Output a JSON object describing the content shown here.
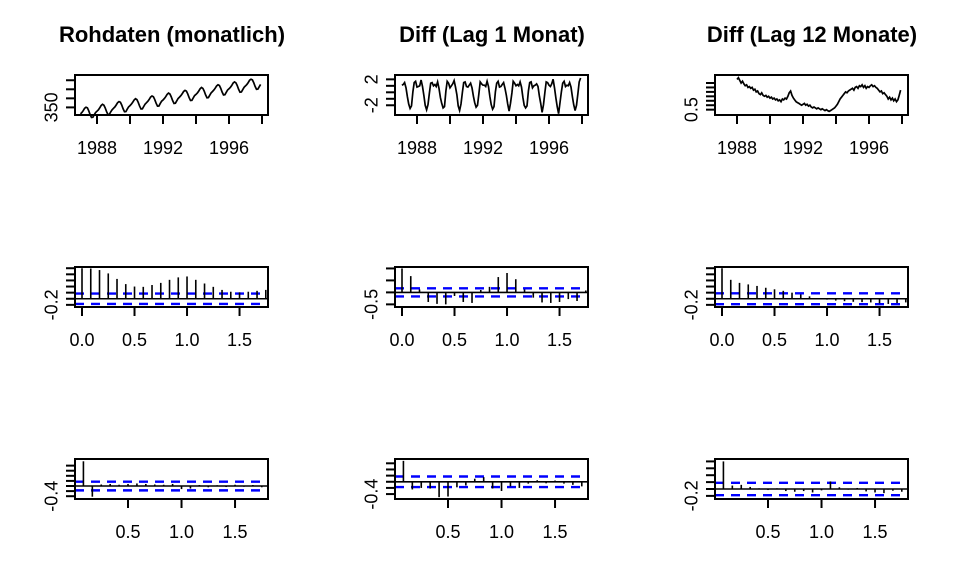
{
  "titles": {
    "col1": "Rohdaten (monatlich)",
    "col2": "Diff (Lag 1 Monat)",
    "col3": "Diff (Lag 12 Monate)"
  },
  "colors": {
    "series": "#000000",
    "axis": "#000000",
    "ci_band": "#0000FF",
    "background": "#FFFFFF"
  },
  "chart_data": [
    {
      "panel_id": "p1",
      "name": "raw-monthly-series",
      "type": "line",
      "title": "Rohdaten (monatlich)",
      "xlabel": "",
      "ylabel": "",
      "x_start": 1987.0,
      "x_step": 0.0833333,
      "xlim": [
        1986.667,
        1998.364
      ],
      "ylim": [
        345.8,
        367.9
      ],
      "xticks": {
        "values": [
          1988,
          1990,
          1992,
          1994,
          1996,
          1998
        ],
        "labels": [
          "1988",
          "",
          "1992",
          "",
          "1996",
          ""
        ]
      },
      "yticks": {
        "values": [
          350,
          355,
          360,
          365
        ],
        "labels": [
          "350",
          "",
          "",
          ""
        ]
      },
      "values": [
        346.4,
        347.2,
        348.2,
        349.5,
        350.1,
        349.7,
        348.2,
        346.1,
        344.5,
        344.6,
        345.9,
        347.2,
        347.9,
        348.7,
        349.7,
        351.0,
        351.7,
        351.2,
        349.7,
        347.6,
        346.0,
        346.2,
        347.5,
        348.7,
        349.5,
        350.3,
        351.3,
        352.6,
        353.2,
        352.8,
        351.3,
        349.2,
        347.6,
        347.7,
        349.0,
        350.3,
        351.0,
        351.8,
        352.8,
        354.1,
        354.8,
        354.3,
        352.8,
        350.7,
        349.1,
        349.2,
        350.5,
        351.8,
        352.6,
        353.4,
        354.4,
        355.7,
        356.3,
        355.9,
        354.4,
        352.3,
        350.7,
        350.8,
        352.1,
        353.4,
        354.1,
        354.9,
        355.9,
        357.2,
        357.9,
        357.4,
        355.9,
        353.8,
        352.2,
        352.3,
        353.6,
        354.9,
        355.7,
        356.5,
        357.5,
        358.8,
        359.4,
        359.0,
        357.5,
        355.4,
        353.8,
        353.9,
        355.2,
        356.5,
        357.2,
        358.0,
        359.0,
        360.3,
        361.0,
        360.5,
        359.0,
        356.9,
        355.3,
        355.4,
        356.7,
        358.0,
        358.8,
        359.6,
        360.6,
        361.9,
        362.5,
        362.1,
        360.6,
        358.5,
        356.9,
        357.0,
        358.3,
        359.6,
        360.3,
        361.1,
        362.1,
        363.4,
        364.1,
        363.6,
        362.1,
        360.0,
        358.4,
        358.5,
        359.8,
        361.1,
        361.9,
        362.7,
        363.7,
        365.0,
        365.6,
        365.2,
        363.7,
        361.6,
        360.0,
        360.1,
        361.4,
        362.7
      ]
    },
    {
      "panel_id": "p2",
      "name": "diff-lag1-series",
      "type": "line",
      "title": "Diff (Lag 1 Monat)",
      "xlabel": "",
      "ylabel": "",
      "x_start": 1987.0833,
      "x_step": 0.0833333,
      "xlim": [
        1986.667,
        1998.364
      ],
      "ylim": [
        -3.5,
        2.67
      ],
      "xticks": {
        "values": [
          1988,
          1990,
          1992,
          1994,
          1996,
          1998
        ],
        "labels": [
          "1988",
          "",
          "1992",
          "",
          "1996",
          ""
        ]
      },
      "yticks": {
        "values": [
          -2,
          -1,
          0,
          1,
          2
        ],
        "labels": [
          "-2",
          "",
          "",
          "",
          "2"
        ]
      },
      "values": [
        1.1,
        1.2,
        1.5,
        0.7,
        -0.7,
        -1.8,
        -2.5,
        -2.1,
        0.1,
        1.5,
        1.7,
        0.8,
        0.9,
        1.0,
        1.9,
        0.9,
        -0.5,
        -2.0,
        -2.7,
        -1.9,
        -0.1,
        1.4,
        1.5,
        1.0,
        1.2,
        0.9,
        1.6,
        0.6,
        -0.8,
        -1.7,
        -2.4,
        -2.2,
        0.2,
        1.7,
        1.4,
        0.7,
        1.0,
        1.3,
        1.8,
        0.8,
        -0.4,
        -2.1,
        -2.8,
        -1.8,
        0.0,
        1.5,
        1.6,
        0.9,
        0.8,
        1.1,
        1.4,
        0.7,
        -0.6,
        -1.6,
        -2.3,
        -2.0,
        -0.2,
        1.6,
        1.3,
        1.1,
        1.1,
        0.9,
        1.7,
        0.9,
        -0.7,
        -1.9,
        -2.6,
        -2.2,
        0.1,
        1.4,
        1.7,
        0.8,
        0.9,
        1.2,
        1.5,
        0.6,
        -0.5,
        -1.8,
        -2.9,
        -1.7,
        -0.1,
        1.7,
        1.4,
        1.0,
        1.2,
        1.0,
        1.6,
        0.8,
        -0.8,
        -2.0,
        -2.4,
        -2.1,
        0.2,
        1.5,
        1.6,
        0.7,
        1.0,
        1.1,
        1.3,
        0.9,
        -0.6,
        -1.7,
        -3.1,
        -1.9,
        0.0,
        1.6,
        1.5,
        1.1,
        0.9,
        1.3,
        2.0,
        0.7,
        -0.9,
        -2.2,
        -3.3,
        -1.6,
        0.1,
        1.4,
        1.7,
        0.9,
        1.1,
        1.0,
        1.5,
        0.8,
        -0.7,
        -1.9,
        -2.8,
        -2.0,
        -0.2,
        1.6,
        2.2
      ]
    },
    {
      "panel_id": "p3",
      "name": "diff-lag12-series",
      "type": "line",
      "title": "Diff (Lag 12 Monate)",
      "xlabel": "",
      "ylabel": "",
      "x_start": 1988.0,
      "x_step": 0.0833333,
      "xlim": [
        1986.667,
        1998.364
      ],
      "ylim": [
        0.2,
        2.45
      ],
      "xticks": {
        "values": [
          1988,
          1990,
          1992,
          1994,
          1996,
          1998
        ],
        "labels": [
          "1988",
          "",
          "1992",
          "",
          "1996",
          ""
        ]
      },
      "yticks": {
        "values": [
          0.5,
          0.75,
          1.0,
          1.25,
          1.5,
          1.75,
          2.0
        ],
        "labels": [
          "0.5",
          "",
          "",
          "",
          "",
          "",
          ""
        ]
      },
      "values": [
        2.2,
        2.3,
        2.15,
        2.0,
        2.1,
        1.95,
        1.85,
        1.9,
        1.75,
        1.8,
        1.7,
        1.75,
        1.6,
        1.65,
        1.5,
        1.55,
        1.4,
        1.35,
        1.45,
        1.3,
        1.25,
        1.3,
        1.2,
        1.25,
        1.15,
        1.2,
        1.1,
        1.15,
        1.05,
        1.1,
        1.0,
        1.05,
        0.95,
        1.1,
        1.05,
        1.15,
        1.1,
        1.25,
        1.45,
        1.55,
        1.3,
        1.15,
        1.05,
        0.95,
        0.9,
        0.85,
        0.8,
        0.75,
        0.8,
        0.85,
        0.75,
        0.8,
        0.7,
        0.75,
        0.65,
        0.6,
        0.65,
        0.6,
        0.55,
        0.6,
        0.55,
        0.5,
        0.55,
        0.5,
        0.45,
        0.5,
        0.45,
        0.4,
        0.45,
        0.5,
        0.55,
        0.6,
        0.7,
        0.8,
        0.95,
        1.1,
        1.2,
        1.3,
        1.4,
        1.5,
        1.45,
        1.55,
        1.6,
        1.65,
        1.7,
        1.6,
        1.75,
        1.8,
        1.7,
        1.85,
        1.8,
        1.9,
        1.75,
        1.85,
        1.7,
        1.8,
        1.75,
        1.85,
        1.9,
        1.8,
        1.85,
        1.75,
        1.7,
        1.6,
        1.5,
        1.55,
        1.4,
        1.45,
        1.35,
        1.25,
        1.1,
        1.2,
        1.05,
        1.15,
        1.0,
        1.1,
        0.95,
        1.05,
        1.3,
        1.6
      ]
    },
    {
      "panel_id": "p4",
      "name": "acf-raw",
      "type": "acf",
      "title": "",
      "xlabel": "",
      "ylabel": "",
      "start_lag": 0,
      "ci": 0.171,
      "xlim": [
        -0.0667,
        1.771
      ],
      "ylim": [
        -0.27,
        1.04
      ],
      "xticks": {
        "values": [
          0.0,
          0.5,
          1.0,
          1.5
        ],
        "labels": [
          "0.0",
          "0.5",
          "1.0",
          "1.5"
        ]
      },
      "yticks": {
        "values": [
          -0.2,
          0.0,
          0.2,
          0.4,
          0.6,
          0.8,
          1.0
        ],
        "labels": [
          "-0.2",
          "",
          "",
          "",
          "",
          "",
          ""
        ]
      },
      "values": [
        1.0,
        0.99,
        0.94,
        0.83,
        0.65,
        0.48,
        0.4,
        0.39,
        0.45,
        0.52,
        0.62,
        0.7,
        0.73,
        0.62,
        0.5,
        0.39,
        0.29,
        0.23,
        0.21,
        0.23,
        0.26,
        0.29
      ]
    },
    {
      "panel_id": "p5",
      "name": "acf-diff1",
      "type": "acf",
      "title": "",
      "xlabel": "",
      "ylabel": "",
      "start_lag": 0,
      "ci": 0.171,
      "xlim": [
        -0.0667,
        1.771
      ],
      "ylim": [
        -0.61,
        1.06
      ],
      "xticks": {
        "values": [
          0.0,
          0.5,
          1.0,
          1.5
        ],
        "labels": [
          "0.0",
          "0.5",
          "1.0",
          "1.5"
        ]
      },
      "yticks": {
        "values": [
          -0.5,
          0.0,
          0.5,
          1.0
        ],
        "labels": [
          "-0.5",
          "",
          "",
          ""
        ]
      },
      "values": [
        1.0,
        0.68,
        0.12,
        -0.4,
        -0.48,
        -0.5,
        -0.15,
        -0.4,
        -0.44,
        0.1,
        0.23,
        0.64,
        0.81,
        0.55,
        0.12,
        -0.22,
        -0.42,
        -0.44,
        -0.4,
        -0.28,
        -0.36,
        0.08
      ]
    },
    {
      "panel_id": "p6",
      "name": "acf-diff12",
      "type": "acf",
      "title": "",
      "xlabel": "",
      "ylabel": "",
      "start_lag": 0,
      "ci": 0.179,
      "xlim": [
        -0.0667,
        1.771
      ],
      "ylim": [
        -0.27,
        1.04
      ],
      "xticks": {
        "values": [
          0.0,
          0.5,
          1.0,
          1.5
        ],
        "labels": [
          "0.0",
          "0.5",
          "1.0",
          "1.5"
        ]
      },
      "yticks": {
        "values": [
          -0.2,
          0.0,
          0.2,
          0.4,
          0.6,
          0.8,
          1.0
        ],
        "labels": [
          "-0.2",
          "",
          "",
          "",
          "",
          "",
          ""
        ]
      },
      "values": [
        1.0,
        0.62,
        0.52,
        0.47,
        0.42,
        0.36,
        0.31,
        0.26,
        0.2,
        0.14,
        0.08,
        0.02,
        -0.03,
        -0.06,
        -0.08,
        -0.1,
        -0.11,
        -0.12,
        -0.15,
        -0.17,
        -0.14,
        -0.12
      ]
    },
    {
      "panel_id": "p7",
      "name": "pacf-raw",
      "type": "acf",
      "title": "",
      "xlabel": "",
      "ylabel": "",
      "start_lag": 1,
      "ci": 0.171,
      "xlim": [
        0.0047,
        1.808
      ],
      "ylim": [
        -0.51,
        1.06
      ],
      "xticks": {
        "values": [
          0.5,
          1.0,
          1.5
        ],
        "labels": [
          "0.5",
          "1.0",
          "1.5"
        ]
      },
      "yticks": {
        "values": [
          -0.4,
          -0.2,
          0.0,
          0.2,
          0.4,
          0.6,
          0.8
        ],
        "labels": [
          "-0.4",
          "",
          "",
          "",
          "",
          "",
          ""
        ]
      },
      "values": [
        0.97,
        -0.42,
        0.06,
        0.08,
        0.05,
        0.08,
        0.1,
        0.08,
        0.06,
        0.05,
        0.08,
        -0.12,
        -0.1,
        0.04,
        -0.05,
        0.03,
        -0.04,
        0.05,
        -0.03,
        0.04,
        -0.05
      ]
    },
    {
      "panel_id": "p8",
      "name": "pacf-diff1",
      "type": "acf",
      "title": "",
      "xlabel": "",
      "ylabel": "",
      "start_lag": 1,
      "ci": 0.171,
      "xlim": [
        0.0047,
        1.808
      ],
      "ylim": [
        -0.56,
        0.74
      ],
      "xticks": {
        "values": [
          0.5,
          1.0,
          1.5
        ],
        "labels": [
          "0.5",
          "1.0",
          "1.5"
        ]
      },
      "yticks": {
        "values": [
          -0.4,
          -0.2,
          0.0,
          0.2,
          0.4,
          0.6
        ],
        "labels": [
          "-0.4",
          "",
          "",
          "",
          "",
          ""
        ]
      },
      "values": [
        0.68,
        -0.25,
        -0.2,
        -0.22,
        -0.5,
        -0.48,
        -0.18,
        -0.12,
        0.1,
        0.15,
        -0.22,
        -0.3,
        -0.15,
        -0.2,
        -0.06,
        0.05,
        -0.05,
        0.04,
        -0.06,
        -0.1,
        -0.15
      ]
    },
    {
      "panel_id": "p9",
      "name": "pacf-diff12",
      "type": "acf",
      "title": "",
      "xlabel": "",
      "ylabel": "",
      "start_lag": 1,
      "ci": 0.179,
      "xlim": [
        0.0047,
        1.808
      ],
      "ylim": [
        -0.29,
        0.87
      ],
      "xticks": {
        "values": [
          0.5,
          1.0,
          1.5
        ],
        "labels": [
          "0.5",
          "1.0",
          "1.5"
        ]
      },
      "yticks": {
        "values": [
          -0.2,
          0.0,
          0.2,
          0.4,
          0.6,
          0.8
        ],
        "labels": [
          "-0.2",
          "",
          "",
          "",
          "",
          ""
        ]
      },
      "values": [
        0.8,
        0.1,
        0.12,
        0.06,
        0.02,
        -0.03,
        0.02,
        -0.06,
        -0.08,
        -0.06,
        -0.1,
        -0.04,
        0.22,
        0.05,
        -0.02,
        0.03,
        -0.07,
        -0.1,
        -0.12,
        -0.05,
        -0.08
      ]
    }
  ]
}
